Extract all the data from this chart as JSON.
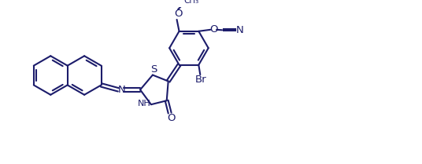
{
  "lc": "#1c1c6b",
  "bg": "#ffffff",
  "lw": 1.5,
  "fs": 8.5,
  "xlim": [
    -0.3,
    10.5
  ],
  "ylim": [
    0.2,
    4.2
  ]
}
